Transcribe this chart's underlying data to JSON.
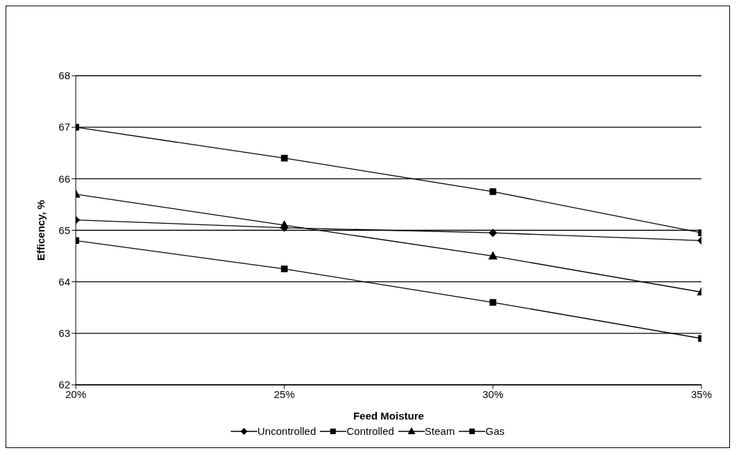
{
  "chart_data": {
    "type": "line",
    "xlabel": "Feed Moisture",
    "ylabel": "Efficency, %",
    "categories": [
      "20%",
      "25%",
      "30%",
      "35%"
    ],
    "series": [
      {
        "name": "Uncontrolled",
        "color": "#000000",
        "marker": "diamond",
        "values": [
          65.2,
          65.05,
          64.95,
          64.8
        ]
      },
      {
        "name": "Controlled",
        "color": "#000000",
        "marker": "square",
        "values": [
          67,
          66.4,
          65.75,
          64.95
        ]
      },
      {
        "name": "Steam",
        "color": "#000000",
        "marker": "triangle",
        "values": [
          65.7,
          65.1,
          64.5,
          63.8
        ]
      },
      {
        "name": "Gas",
        "color": "#000000",
        "marker": "square",
        "values": [
          64.8,
          64.25,
          63.6,
          62.9
        ]
      }
    ],
    "ylim": [
      62,
      68
    ],
    "yticks": [
      62,
      63,
      64,
      65,
      66,
      67,
      68
    ],
    "grid": "y",
    "legend": "bottom",
    "line_style": "solid"
  }
}
